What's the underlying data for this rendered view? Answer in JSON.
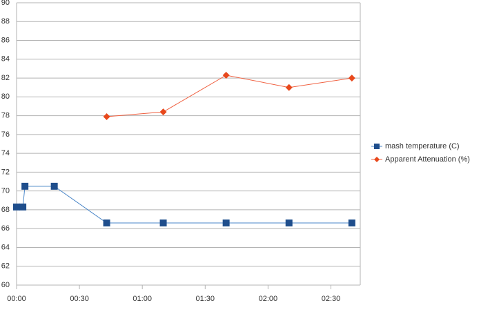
{
  "chart_data": {
    "type": "line",
    "x": [
      0,
      3,
      4,
      18,
      43,
      70,
      100,
      130,
      160
    ],
    "series": [
      {
        "name": "mash temperature (C)",
        "color": "#1f4e8c",
        "line_color": "#4a86c8",
        "marker": "square",
        "values": [
          68.3,
          68.3,
          70.5,
          70.5,
          66.6,
          66.6,
          66.6,
          66.6,
          66.6
        ]
      },
      {
        "name": "Apparent Attenuation (%)",
        "color": "#e8481c",
        "line_color": "#f06040",
        "marker": "diamond",
        "values": [
          null,
          null,
          null,
          null,
          77.9,
          78.4,
          82.3,
          81.0,
          82.0
        ]
      }
    ],
    "xlim": [
      0,
      164
    ],
    "xticks": [
      {
        "value": 0,
        "label": "00:00"
      },
      {
        "value": 30,
        "label": "00:30"
      },
      {
        "value": 60,
        "label": "01:00"
      },
      {
        "value": 90,
        "label": "01:30"
      },
      {
        "value": 120,
        "label": "02:00"
      },
      {
        "value": 150,
        "label": "02:30"
      }
    ],
    "ylim": [
      60,
      90
    ],
    "yticks": [
      60,
      62,
      64,
      66,
      68,
      70,
      72,
      74,
      76,
      78,
      80,
      82,
      84,
      86,
      88,
      90
    ],
    "grid": true,
    "legend": "right"
  }
}
